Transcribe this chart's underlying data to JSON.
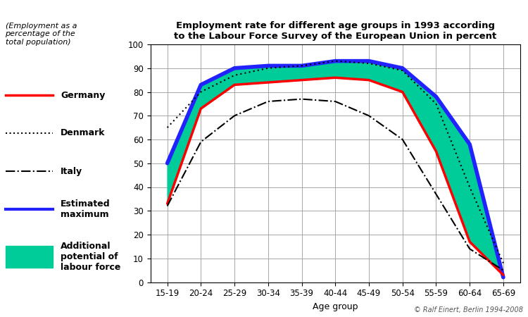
{
  "title": "Employment rate for different age groups in 1993 according\nto the Labour Force Survey of the European Union in percent",
  "ylabel_text": "(Employment as a\npercentage of the\ntotal population)",
  "xlabel": "Age group",
  "age_groups": [
    "15-19",
    "20-24",
    "25-29",
    "30-34",
    "35-39",
    "40-44",
    "45-49",
    "50-54",
    "55-59",
    "60-64",
    "65-69"
  ],
  "x_positions": [
    0,
    1,
    2,
    3,
    4,
    5,
    6,
    7,
    8,
    9,
    10
  ],
  "germany": [
    33,
    73,
    83,
    84,
    85,
    86,
    85,
    80,
    55,
    17,
    3
  ],
  "denmark": [
    65,
    80,
    87,
    90,
    91,
    93,
    92,
    89,
    75,
    40,
    8
  ],
  "italy": [
    32,
    59,
    70,
    76,
    77,
    76,
    70,
    60,
    37,
    14,
    5
  ],
  "estimated_max": [
    50,
    83,
    90,
    91,
    91,
    93,
    93,
    90,
    78,
    58,
    2
  ],
  "germany_color": "#ff0000",
  "denmark_color": "#000000",
  "italy_color": "#000000",
  "blue_line_color": "#2222ff",
  "fill_color": "#00cc99",
  "background_color": "#ffffff",
  "grid_color": "#999999",
  "ylim": [
    0,
    100
  ],
  "yticks": [
    0,
    10,
    20,
    30,
    40,
    50,
    60,
    70,
    80,
    90,
    100
  ],
  "copyright": "© Ralf Einert, Berlin 1994-2008"
}
